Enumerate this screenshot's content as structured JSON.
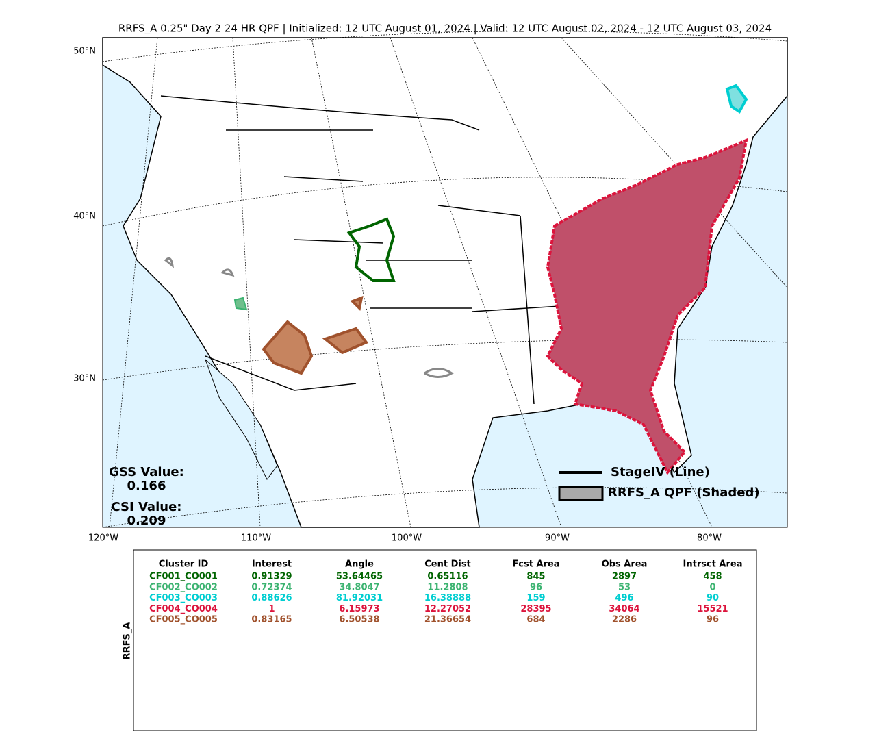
{
  "title": "RRFS_A 0.25\" Day 2 24 HR QPF | Initialized: 12 UTC August 01, 2024 | Valid: 12 UTC August 02, 2024 - 12 UTC August 03, 2024",
  "map": {
    "lat_labels": [
      "50°N",
      "40°N",
      "30°N"
    ],
    "lon_labels": [
      "120°W",
      "110°W",
      "100°W",
      "90°W",
      "80°W"
    ],
    "gss_label": "GSS Value:",
    "gss_value": "0.166",
    "csi_label": "CSI Value:",
    "csi_value": "0.209",
    "legend": [
      "StageIV (Line)",
      "RRFS_A QPF (Shaded)"
    ]
  },
  "table": {
    "side_label": "RRFS_A",
    "header": [
      "Cluster ID",
      "Interest",
      "Angle",
      "Cent Dist",
      "Fcst Area",
      "Obs Area",
      "Intrsct Area"
    ],
    "rows": [
      {
        "color": "#006400",
        "cells": [
          "CF001_CO001",
          "0.91329",
          "53.64465",
          "0.65116",
          "845",
          "2897",
          "458"
        ]
      },
      {
        "color": "#3cb371",
        "cells": [
          "CF002_CO002",
          "0.72374",
          "34.8047",
          "11.2808",
          "96",
          "53",
          "0"
        ]
      },
      {
        "color": "#00ced1",
        "cells": [
          "CF003_CO003",
          "0.88626",
          "81.92031",
          "16.38888",
          "159",
          "496",
          "90"
        ]
      },
      {
        "color": "#dc143c",
        "cells": [
          "CF004_CO004",
          "1",
          "6.15973",
          "12.27052",
          "28395",
          "34064",
          "15521"
        ]
      },
      {
        "color": "#a0522d",
        "cells": [
          "CF005_CO005",
          "0.83165",
          "6.50538",
          "21.36654",
          "684",
          "2286",
          "96"
        ]
      }
    ]
  }
}
